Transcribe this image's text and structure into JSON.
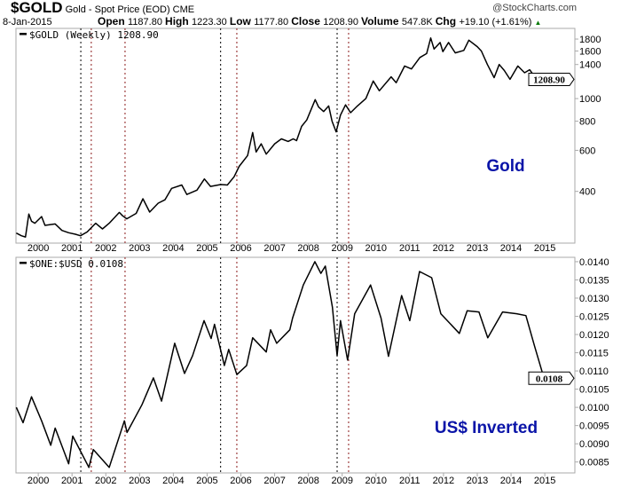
{
  "header": {
    "symbol": "$GOLD",
    "name": "Gold - Spot Price (EOD)",
    "exchange": "CME",
    "watermark": "@StockCharts.com",
    "date": "8-Jan-2015",
    "quote": [
      {
        "label": "Open",
        "value": "1187.80"
      },
      {
        "label": "High",
        "value": "1223.30"
      },
      {
        "label": "Low",
        "value": "1177.80"
      },
      {
        "label": "Close",
        "value": "1208.90"
      },
      {
        "label": "Volume",
        "value": "547.8K"
      },
      {
        "label": "Chg",
        "value": "+19.10 (+1.61%)"
      }
    ],
    "chg_direction": "up"
  },
  "colors": {
    "line": "#000000",
    "annotation": "#0a14a8",
    "marker_black": "#000000",
    "marker_red": "#8b1a1a"
  },
  "chart_data": [
    {
      "type": "line",
      "legend": "$GOLD (Weekly) 1208.90",
      "annotation": "Gold",
      "last_value_tag": "1208.90",
      "last_value": 1208.9,
      "scale": "log",
      "ylim": [
        240,
        2000
      ],
      "xlim": [
        1999.34,
        2015.89
      ],
      "x_ticks": [
        "2000",
        "2001",
        "2002",
        "2003",
        "2004",
        "2005",
        "2006",
        "2007",
        "2008",
        "2009",
        "2010",
        "2011",
        "2012",
        "2013",
        "2014",
        "2015"
      ],
      "y_ticks": [
        400,
        600,
        800,
        1000,
        1400,
        1600,
        1800
      ],
      "y_tick_labels": [
        "400",
        "600",
        "800",
        "1000",
        "1400",
        "1600",
        "1800"
      ],
      "points": [
        [
          1999.35,
          265
        ],
        [
          1999.5,
          258
        ],
        [
          1999.62,
          255
        ],
        [
          1999.72,
          320
        ],
        [
          1999.8,
          298
        ],
        [
          1999.9,
          292
        ],
        [
          2000.1,
          312
        ],
        [
          2000.2,
          286
        ],
        [
          2000.5,
          290
        ],
        [
          2000.7,
          272
        ],
        [
          2000.9,
          266
        ],
        [
          2001.1,
          262
        ],
        [
          2001.25,
          258
        ],
        [
          2001.45,
          268
        ],
        [
          2001.7,
          292
        ],
        [
          2001.9,
          276
        ],
        [
          2002.1,
          292
        ],
        [
          2002.4,
          325
        ],
        [
          2002.5,
          314
        ],
        [
          2002.62,
          305
        ],
        [
          2002.9,
          322
        ],
        [
          2003.1,
          372
        ],
        [
          2003.3,
          326
        ],
        [
          2003.55,
          356
        ],
        [
          2003.75,
          368
        ],
        [
          2003.95,
          412
        ],
        [
          2004.25,
          426
        ],
        [
          2004.4,
          388
        ],
        [
          2004.7,
          405
        ],
        [
          2004.92,
          452
        ],
        [
          2005.1,
          420
        ],
        [
          2005.4,
          428
        ],
        [
          2005.6,
          426
        ],
        [
          2005.8,
          462
        ],
        [
          2005.95,
          512
        ],
        [
          2006.2,
          570
        ],
        [
          2006.35,
          715
        ],
        [
          2006.45,
          590
        ],
        [
          2006.6,
          640
        ],
        [
          2006.75,
          578
        ],
        [
          2007.0,
          640
        ],
        [
          2007.2,
          672
        ],
        [
          2007.4,
          655
        ],
        [
          2007.55,
          672
        ],
        [
          2007.65,
          660
        ],
        [
          2007.8,
          760
        ],
        [
          2007.95,
          810
        ],
        [
          2008.2,
          990
        ],
        [
          2008.3,
          920
        ],
        [
          2008.45,
          880
        ],
        [
          2008.6,
          930
        ],
        [
          2008.7,
          800
        ],
        [
          2008.82,
          720
        ],
        [
          2008.95,
          850
        ],
        [
          2009.1,
          940
        ],
        [
          2009.25,
          870
        ],
        [
          2009.45,
          930
        ],
        [
          2009.7,
          1000
        ],
        [
          2009.92,
          1190
        ],
        [
          2010.1,
          1080
        ],
        [
          2010.45,
          1240
        ],
        [
          2010.6,
          1170
        ],
        [
          2010.85,
          1380
        ],
        [
          2011.05,
          1340
        ],
        [
          2011.3,
          1500
        ],
        [
          2011.5,
          1560
        ],
        [
          2011.62,
          1820
        ],
        [
          2011.72,
          1630
        ],
        [
          2011.9,
          1740
        ],
        [
          2011.98,
          1590
        ],
        [
          2012.15,
          1740
        ],
        [
          2012.35,
          1570
        ],
        [
          2012.6,
          1610
        ],
        [
          2012.75,
          1780
        ],
        [
          2013.0,
          1670
        ],
        [
          2013.12,
          1600
        ],
        [
          2013.3,
          1400
        ],
        [
          2013.5,
          1230
        ],
        [
          2013.65,
          1400
        ],
        [
          2013.8,
          1320
        ],
        [
          2013.97,
          1210
        ],
        [
          2014.2,
          1380
        ],
        [
          2014.4,
          1290
        ],
        [
          2014.55,
          1330
        ],
        [
          2014.72,
          1230
        ],
        [
          2014.85,
          1170
        ],
        [
          2014.95,
          1195
        ],
        [
          2015.02,
          1209
        ]
      ]
    },
    {
      "type": "line",
      "legend": "$ONE:$USD 0.0108",
      "annotation": "US$ Inverted",
      "last_value_tag": "0.0108",
      "last_value": 0.0108,
      "scale": "linear",
      "ylim": [
        0.0082,
        0.01412
      ],
      "xlim": [
        1999.34,
        2015.89
      ],
      "x_ticks": [
        "2000",
        "2001",
        "2002",
        "2003",
        "2004",
        "2005",
        "2006",
        "2007",
        "2008",
        "2009",
        "2010",
        "2011",
        "2012",
        "2013",
        "2014",
        "2015"
      ],
      "y_ticks": [
        0.0085,
        0.009,
        0.0095,
        0.01,
        0.0105,
        0.011,
        0.0115,
        0.012,
        0.0125,
        0.013,
        0.0135,
        0.014
      ],
      "y_tick_labels": [
        "0.0085",
        "0.0090",
        "0.0095",
        "0.0100",
        "0.0105",
        "0.0110",
        "0.0115",
        "0.0120",
        "0.0125",
        "0.0130",
        "0.0135",
        "0.0140"
      ],
      "points": [
        [
          1999.35,
          0.01
        ],
        [
          1999.55,
          0.00958
        ],
        [
          1999.8,
          0.01029
        ],
        [
          2000.1,
          0.00963
        ],
        [
          2000.37,
          0.00896
        ],
        [
          2000.5,
          0.00943
        ],
        [
          2000.9,
          0.00845
        ],
        [
          2001.02,
          0.00921
        ],
        [
          2001.5,
          0.00835
        ],
        [
          2001.63,
          0.00884
        ],
        [
          2002.1,
          0.00835
        ],
        [
          2002.55,
          0.00963
        ],
        [
          2002.63,
          0.00931
        ],
        [
          2003.07,
          0.01007
        ],
        [
          2003.41,
          0.01081
        ],
        [
          2003.65,
          0.01017
        ],
        [
          2004.04,
          0.01176
        ],
        [
          2004.33,
          0.01093
        ],
        [
          2004.57,
          0.01142
        ],
        [
          2004.91,
          0.01238
        ],
        [
          2005.12,
          0.01189
        ],
        [
          2005.22,
          0.01228
        ],
        [
          2005.51,
          0.01115
        ],
        [
          2005.64,
          0.01159
        ],
        [
          2005.88,
          0.0109
        ],
        [
          2006.17,
          0.01115
        ],
        [
          2006.35,
          0.01191
        ],
        [
          2006.75,
          0.01152
        ],
        [
          2006.88,
          0.01213
        ],
        [
          2007.06,
          0.01176
        ],
        [
          2007.45,
          0.01213
        ],
        [
          2007.53,
          0.01245
        ],
        [
          2007.85,
          0.01336
        ],
        [
          2008.19,
          0.014
        ],
        [
          2008.37,
          0.01368
        ],
        [
          2008.5,
          0.01388
        ],
        [
          2008.71,
          0.01275
        ],
        [
          2008.85,
          0.01142
        ],
        [
          2008.95,
          0.01238
        ],
        [
          2009.16,
          0.0113
        ],
        [
          2009.37,
          0.01257
        ],
        [
          2009.84,
          0.01336
        ],
        [
          2010.15,
          0.01245
        ],
        [
          2010.37,
          0.0114
        ],
        [
          2010.76,
          0.01307
        ],
        [
          2011.0,
          0.01238
        ],
        [
          2011.29,
          0.01373
        ],
        [
          2011.65,
          0.01356
        ],
        [
          2011.92,
          0.01257
        ],
        [
          2012.47,
          0.01203
        ],
        [
          2012.7,
          0.01265
        ],
        [
          2013.05,
          0.01262
        ],
        [
          2013.31,
          0.01191
        ],
        [
          2013.75,
          0.01262
        ],
        [
          2014.17,
          0.01257
        ],
        [
          2014.44,
          0.01252
        ],
        [
          2014.7,
          0.01167
        ],
        [
          2014.96,
          0.01085
        ],
        [
          2015.02,
          0.0108
        ]
      ]
    }
  ],
  "event_lines": [
    {
      "year": 2001.26,
      "color": "black"
    },
    {
      "year": 2001.57,
      "color": "red"
    },
    {
      "year": 2002.57,
      "color": "red"
    },
    {
      "year": 2005.4,
      "color": "black"
    },
    {
      "year": 2005.88,
      "color": "red"
    },
    {
      "year": 2008.85,
      "color": "black"
    },
    {
      "year": 2009.19,
      "color": "red"
    }
  ]
}
